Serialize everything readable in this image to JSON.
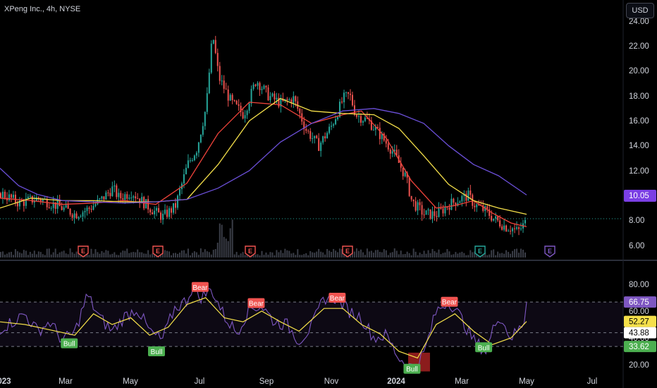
{
  "header": {
    "symbol_title": "XPeng Inc., 4h, NYSE",
    "currency_label": "USD"
  },
  "colors": {
    "up": "#26a69a",
    "down": "#ef5350",
    "ma_fast": "#f0433a",
    "ma_mid": "#f5e04a",
    "ma_slow": "#6b4fd8",
    "rsi": "#7e57c2",
    "rsi_ma": "#f5e04a",
    "bull": "#4caf50",
    "bear": "#f05350",
    "current_price": "#7b3fe4"
  },
  "chart_data": [
    {
      "type": "candlestick",
      "title": "XPeng Inc., 4h, NYSE",
      "y_ticks": [
        "24.00",
        "22.00",
        "20.00",
        "18.00",
        "16.00",
        "14.00",
        "12.00",
        "10.00",
        "8.00",
        "6.00"
      ],
      "ylim": [
        5.0,
        25.0
      ],
      "x_ticks": [
        "2023",
        "Mar",
        "May",
        "Jul",
        "Sep",
        "Nov",
        "2024",
        "Mar",
        "May",
        "Jul"
      ],
      "current_price_label": "10.05",
      "earnings_markers": [
        "E",
        "E",
        "E",
        "E",
        "E",
        "E"
      ],
      "price_path": [
        [
          0,
          10.2
        ],
        [
          0.03,
          9.4
        ],
        [
          0.06,
          9.8
        ],
        [
          0.09,
          9.2
        ],
        [
          0.12,
          8.5
        ],
        [
          0.14,
          8.9
        ],
        [
          0.16,
          9.6
        ],
        [
          0.18,
          10.6
        ],
        [
          0.19,
          9.8
        ],
        [
          0.21,
          10.3
        ],
        [
          0.23,
          9.4
        ],
        [
          0.25,
          8.6
        ],
        [
          0.26,
          8.3
        ],
        [
          0.28,
          9.1
        ],
        [
          0.29,
          10.8
        ],
        [
          0.3,
          12.5
        ],
        [
          0.315,
          13.8
        ],
        [
          0.33,
          17.2
        ],
        [
          0.34,
          23.0
        ],
        [
          0.35,
          19.5
        ],
        [
          0.37,
          17.5
        ],
        [
          0.39,
          16.5
        ],
        [
          0.41,
          19.3
        ],
        [
          0.43,
          18.0
        ],
        [
          0.45,
          17.4
        ],
        [
          0.47,
          17.8
        ],
        [
          0.49,
          15.3
        ],
        [
          0.51,
          14.0
        ],
        [
          0.53,
          15.5
        ],
        [
          0.55,
          17.8
        ],
        [
          0.56,
          18.1
        ],
        [
          0.57,
          16.5
        ],
        [
          0.59,
          16.0
        ],
        [
          0.61,
          14.8
        ],
        [
          0.63,
          13.5
        ],
        [
          0.65,
          11.5
        ],
        [
          0.66,
          9.5
        ],
        [
          0.68,
          8.5
        ],
        [
          0.7,
          8.5
        ],
        [
          0.72,
          9.3
        ],
        [
          0.74,
          9.8
        ],
        [
          0.75,
          10.0
        ],
        [
          0.76,
          9.3
        ],
        [
          0.78,
          8.7
        ],
        [
          0.79,
          8.2
        ],
        [
          0.81,
          7.5
        ],
        [
          0.82,
          7.4
        ],
        [
          0.83,
          7.1
        ],
        [
          0.845,
          8.0
        ]
      ],
      "series": [
        {
          "name": "",
          "points": [
            [
              0,
              9.8
            ],
            [
              0.05,
              9.6
            ],
            [
              0.1,
              9.3
            ],
            [
              0.15,
              9.4
            ],
            [
              0.2,
              9.6
            ],
            [
              0.25,
              9.3
            ],
            [
              0.3,
              11.0
            ],
            [
              0.35,
              15.0
            ],
            [
              0.4,
              17.5
            ],
            [
              0.45,
              17.3
            ],
            [
              0.5,
              15.8
            ],
            [
              0.55,
              16.5
            ],
            [
              0.58,
              16.8
            ],
            [
              0.62,
              14.6
            ],
            [
              0.66,
              11.2
            ],
            [
              0.7,
              9.0
            ],
            [
              0.73,
              9.2
            ],
            [
              0.76,
              9.6
            ],
            [
              0.79,
              8.6
            ],
            [
              0.82,
              7.8
            ],
            [
              0.845,
              7.5
            ]
          ]
        },
        {
          "name": "",
          "points": [
            [
              0,
              9.0
            ],
            [
              0.05,
              9.8
            ],
            [
              0.1,
              9.6
            ],
            [
              0.15,
              9.6
            ],
            [
              0.2,
              9.5
            ],
            [
              0.25,
              9.5
            ],
            [
              0.3,
              9.7
            ],
            [
              0.35,
              12.5
            ],
            [
              0.4,
              16.0
            ],
            [
              0.45,
              17.8
            ],
            [
              0.5,
              16.8
            ],
            [
              0.55,
              16.6
            ],
            [
              0.6,
              16.5
            ],
            [
              0.64,
              15.4
            ],
            [
              0.68,
              13.2
            ],
            [
              0.72,
              10.9
            ],
            [
              0.76,
              9.6
            ],
            [
              0.8,
              9.0
            ],
            [
              0.845,
              8.5
            ]
          ]
        },
        {
          "name": "",
          "points": [
            [
              0,
              12.2
            ],
            [
              0.03,
              10.8
            ],
            [
              0.06,
              10.1
            ],
            [
              0.1,
              9.6
            ],
            [
              0.15,
              9.5
            ],
            [
              0.2,
              9.4
            ],
            [
              0.25,
              9.5
            ],
            [
              0.3,
              9.7
            ],
            [
              0.35,
              10.6
            ],
            [
              0.4,
              12.0
            ],
            [
              0.45,
              14.3
            ],
            [
              0.5,
              15.8
            ],
            [
              0.55,
              16.8
            ],
            [
              0.6,
              17.0
            ],
            [
              0.64,
              16.6
            ],
            [
              0.68,
              15.8
            ],
            [
              0.72,
              14.0
            ],
            [
              0.76,
              12.5
            ],
            [
              0.8,
              11.6
            ],
            [
              0.845,
              10.05
            ]
          ]
        }
      ]
    },
    {
      "type": "line",
      "ylim": [
        15,
        87
      ],
      "y_ticks": [
        "80.00",
        "60.00",
        "40.00",
        "20.00"
      ],
      "bands": [
        66.75,
        43.88,
        33.62
      ],
      "value_labels": [
        "66.75",
        "52.27",
        "43.88",
        "33.62"
      ],
      "signals": [
        {
          "label": "Bull",
          "x": 0.11,
          "y": 36
        },
        {
          "label": "Bull",
          "x": 0.25,
          "y": 30
        },
        {
          "label": "Bear",
          "x": 0.32,
          "y": 78
        },
        {
          "label": "Bear",
          "x": 0.41,
          "y": 66
        },
        {
          "label": "Bear",
          "x": 0.54,
          "y": 70
        },
        {
          "label": "Bull",
          "x": 0.66,
          "y": 17
        },
        {
          "label": "Bear",
          "x": 0.72,
          "y": 67
        },
        {
          "label": "Bull",
          "x": 0.775,
          "y": 33
        }
      ],
      "rsi_path": [
        [
          0,
          47
        ],
        [
          0.02,
          52
        ],
        [
          0.04,
          58
        ],
        [
          0.06,
          45
        ],
        [
          0.08,
          52
        ],
        [
          0.1,
          38
        ],
        [
          0.12,
          44
        ],
        [
          0.14,
          72
        ],
        [
          0.16,
          55
        ],
        [
          0.18,
          45
        ],
        [
          0.2,
          56
        ],
        [
          0.22,
          62
        ],
        [
          0.24,
          45
        ],
        [
          0.26,
          38
        ],
        [
          0.28,
          62
        ],
        [
          0.3,
          68
        ],
        [
          0.31,
          80
        ],
        [
          0.32,
          70
        ],
        [
          0.34,
          76
        ],
        [
          0.36,
          56
        ],
        [
          0.38,
          44
        ],
        [
          0.4,
          62
        ],
        [
          0.42,
          64
        ],
        [
          0.44,
          52
        ],
        [
          0.46,
          50
        ],
        [
          0.48,
          38
        ],
        [
          0.5,
          48
        ],
        [
          0.52,
          70
        ],
        [
          0.54,
          70
        ],
        [
          0.56,
          60
        ],
        [
          0.58,
          55
        ],
        [
          0.6,
          40
        ],
        [
          0.62,
          42
        ],
        [
          0.64,
          25
        ],
        [
          0.66,
          18
        ],
        [
          0.68,
          28
        ],
        [
          0.7,
          60
        ],
        [
          0.72,
          68
        ],
        [
          0.74,
          55
        ],
        [
          0.76,
          38
        ],
        [
          0.78,
          30
        ],
        [
          0.8,
          58
        ],
        [
          0.82,
          40
        ],
        [
          0.84,
          50
        ],
        [
          0.845,
          66.75
        ]
      ],
      "rsi_ma_path": [
        [
          0,
          52
        ],
        [
          0.04,
          50
        ],
        [
          0.08,
          46
        ],
        [
          0.12,
          42
        ],
        [
          0.15,
          58
        ],
        [
          0.18,
          50
        ],
        [
          0.21,
          55
        ],
        [
          0.24,
          42
        ],
        [
          0.27,
          48
        ],
        [
          0.3,
          65
        ],
        [
          0.33,
          70
        ],
        [
          0.36,
          55
        ],
        [
          0.39,
          52
        ],
        [
          0.42,
          60
        ],
        [
          0.45,
          52
        ],
        [
          0.48,
          45
        ],
        [
          0.52,
          62
        ],
        [
          0.55,
          62
        ],
        [
          0.58,
          50
        ],
        [
          0.61,
          43
        ],
        [
          0.64,
          30
        ],
        [
          0.67,
          25
        ],
        [
          0.7,
          50
        ],
        [
          0.73,
          58
        ],
        [
          0.76,
          45
        ],
        [
          0.79,
          35
        ],
        [
          0.82,
          40
        ],
        [
          0.845,
          52.27
        ]
      ]
    }
  ]
}
